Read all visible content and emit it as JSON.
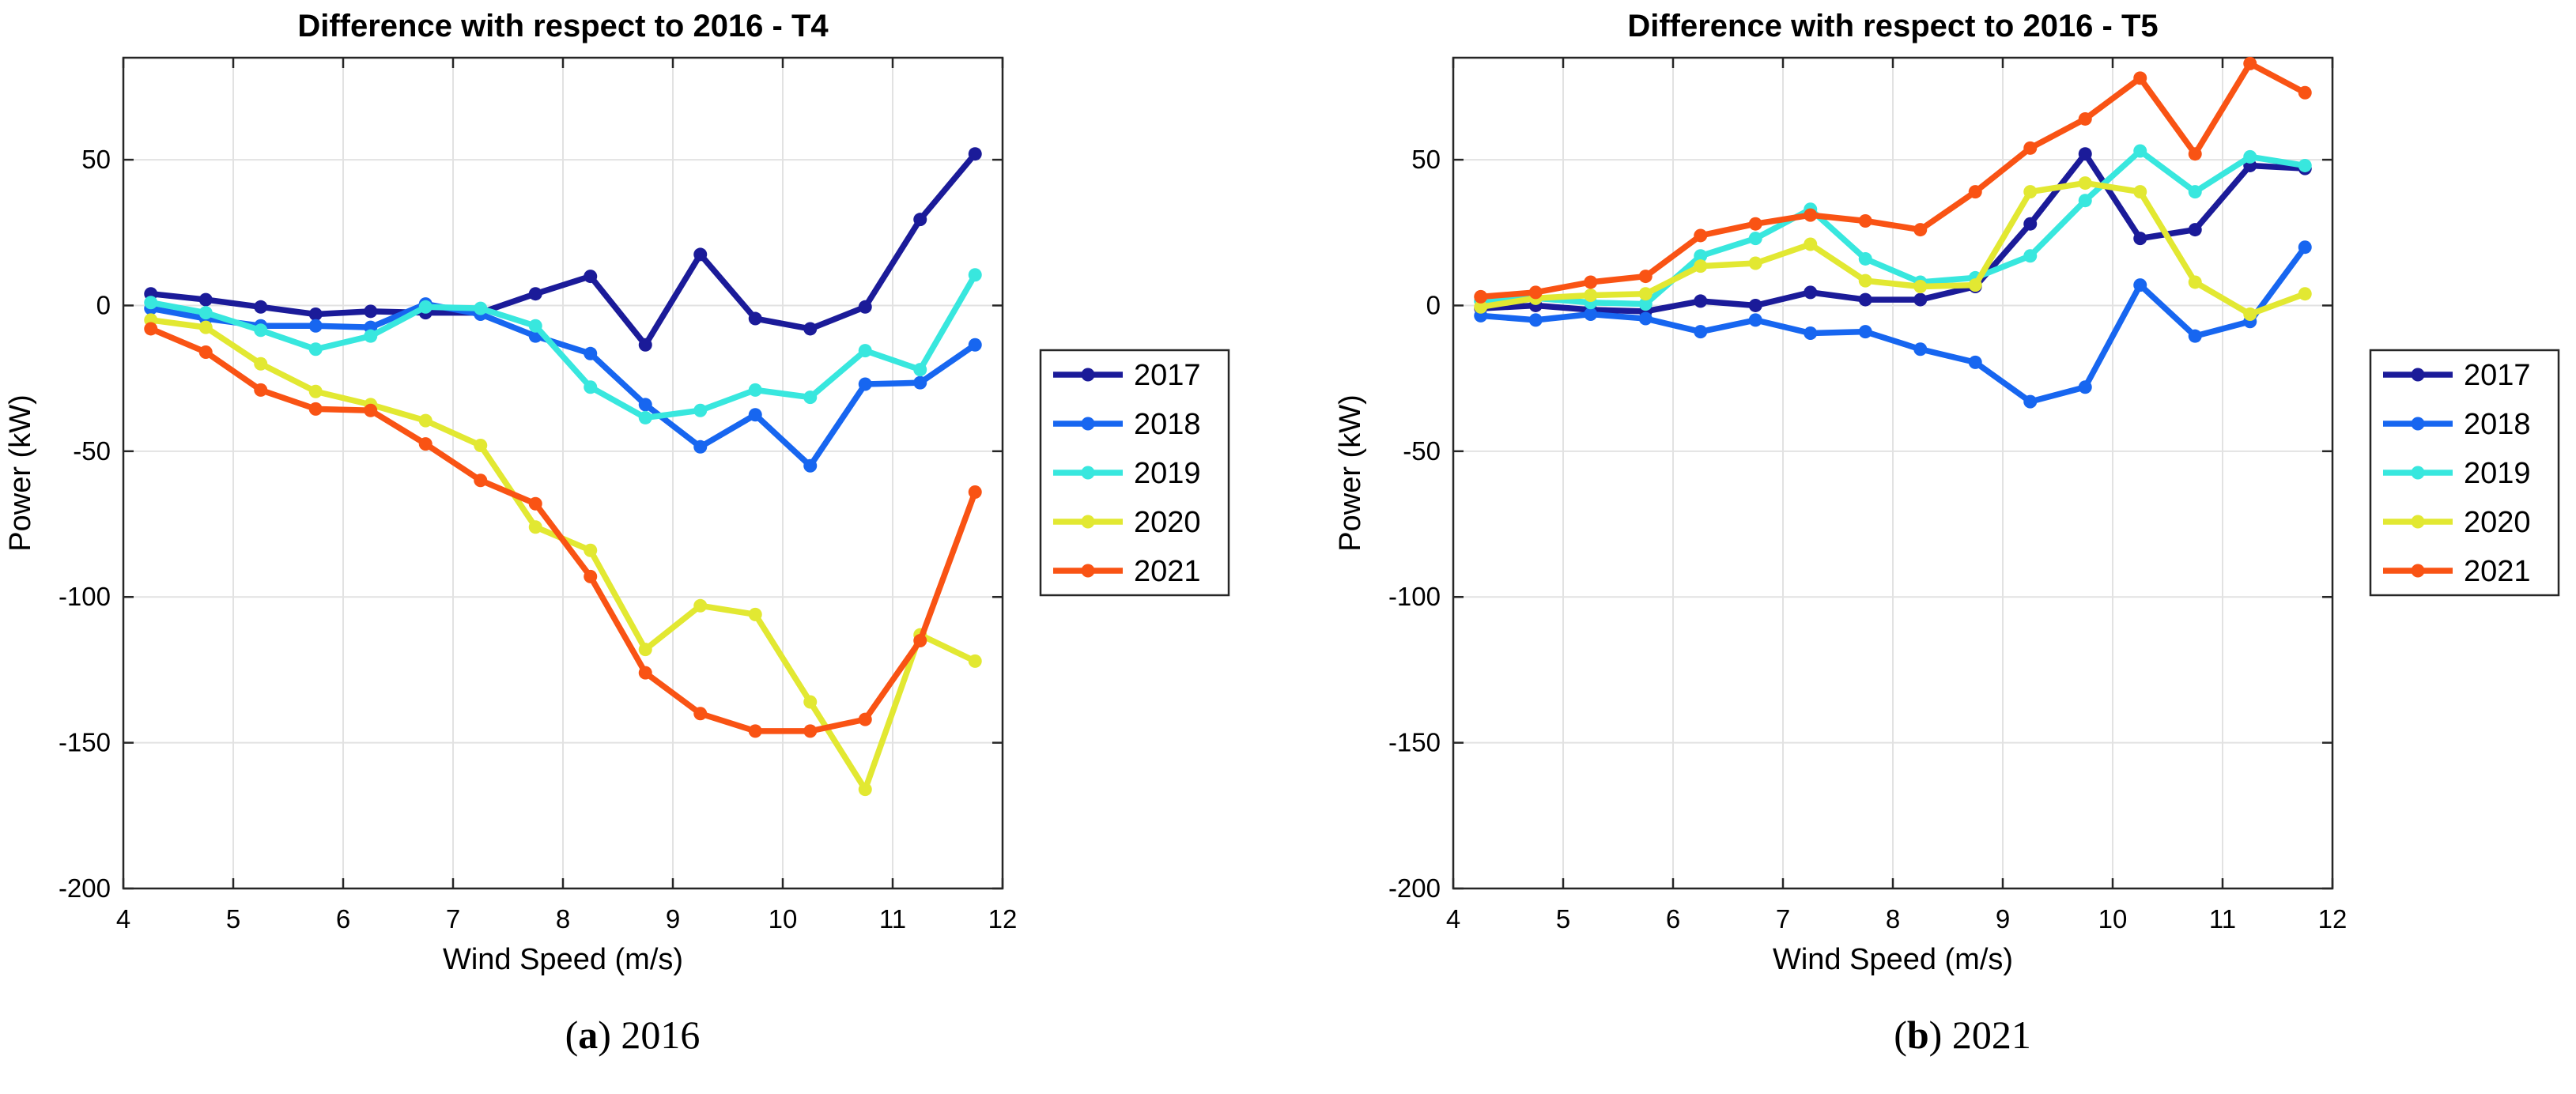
{
  "figure": {
    "background": "#ffffff",
    "captions": [
      {
        "letter": "a",
        "text": "2016"
      },
      {
        "letter": "b",
        "text": "2021"
      }
    ]
  },
  "chart_data": [
    {
      "type": "line",
      "title": "Difference with respect to 2016 - T4",
      "xlabel": "Wind Speed (m/s)",
      "ylabel": "Power (kW)",
      "xlim": [
        4,
        12
      ],
      "ylim": [
        -200,
        85
      ],
      "xticks": [
        4,
        5,
        6,
        7,
        8,
        9,
        10,
        11,
        12
      ],
      "yticks": [
        50,
        0,
        -50,
        -100,
        -150,
        -200
      ],
      "grid": true,
      "legend_position": "right-outside",
      "x": [
        4.25,
        4.75,
        5.25,
        5.75,
        6.25,
        6.75,
        7.25,
        7.75,
        8.25,
        8.75,
        9.25,
        9.75,
        10.25,
        10.75,
        11.25,
        11.75
      ],
      "series": [
        {
          "name": "2017",
          "color": "#1b1b99",
          "values": [
            4,
            2,
            -0.5,
            -3,
            -2,
            -2.5,
            -2.5,
            4,
            10,
            -13.5,
            17.5,
            -4.5,
            -8,
            -0.5,
            29.5,
            52
          ]
        },
        {
          "name": "2018",
          "color": "#1766f0",
          "values": [
            -1,
            -4.5,
            -7,
            -7,
            -7.5,
            0.5,
            -3,
            -10.5,
            -16.5,
            -34,
            -48.5,
            -37.5,
            -55,
            -27,
            -26.5,
            -13.5
          ]
        },
        {
          "name": "2019",
          "color": "#38e7de",
          "values": [
            1,
            -2.5,
            -8.5,
            -15,
            -10.5,
            -0.5,
            -1,
            -7,
            -28,
            -38.5,
            -36,
            -29,
            -31.5,
            -15.5,
            -22,
            10.5
          ]
        },
        {
          "name": "2020",
          "color": "#e2e832",
          "values": [
            -5,
            -7.5,
            -20,
            -29.5,
            -34,
            -39.5,
            -48,
            -76,
            -84,
            -118,
            -103,
            -106,
            -136,
            -166,
            -113,
            -122
          ]
        },
        {
          "name": "2021",
          "color": "#f95314",
          "values": [
            -8,
            -16,
            -29,
            -35.5,
            -36,
            -47.5,
            -60,
            -68,
            -93,
            -126,
            -140,
            -146,
            -146,
            -142,
            -115,
            -64
          ]
        }
      ]
    },
    {
      "type": "line",
      "title": "Difference with respect to 2016 - T5",
      "xlabel": "Wind Speed (m/s)",
      "ylabel": "Power (kW)",
      "xlim": [
        4,
        12
      ],
      "ylim": [
        -200,
        85
      ],
      "xticks": [
        4,
        5,
        6,
        7,
        8,
        9,
        10,
        11,
        12
      ],
      "yticks": [
        50,
        0,
        -50,
        -100,
        -150,
        -200
      ],
      "grid": true,
      "legend_position": "right-outside",
      "x": [
        4.25,
        4.75,
        5.25,
        5.75,
        6.25,
        6.75,
        7.25,
        7.75,
        8.25,
        8.75,
        9.25,
        9.75,
        10.25,
        10.75,
        11.25,
        11.75
      ],
      "series": [
        {
          "name": "2017",
          "color": "#1b1b99",
          "values": [
            -1,
            0,
            -1.5,
            -2,
            1.5,
            0,
            4.5,
            2,
            2,
            6.5,
            28,
            52,
            23,
            26,
            48,
            47
          ]
        },
        {
          "name": "2018",
          "color": "#1766f0",
          "values": [
            -3.5,
            -5,
            -3,
            -4.5,
            -9,
            -5,
            -9.5,
            -9,
            -15,
            -19.5,
            -33,
            -28,
            7,
            -10.5,
            -5.5,
            20
          ]
        },
        {
          "name": "2019",
          "color": "#38e7de",
          "values": [
            1.5,
            2.5,
            1,
            0.5,
            17,
            23,
            33,
            16,
            8,
            9.5,
            17,
            36,
            53,
            39,
            51,
            48
          ]
        },
        {
          "name": "2020",
          "color": "#e2e832",
          "values": [
            -0.5,
            2.5,
            3.5,
            4,
            13.5,
            14.5,
            21,
            8.5,
            6.5,
            7,
            39,
            42,
            39,
            8,
            -3,
            4
          ]
        },
        {
          "name": "2021",
          "color": "#f95314",
          "values": [
            3,
            4.5,
            8,
            10,
            24,
            28,
            31,
            29,
            26,
            39,
            54,
            64,
            78,
            52,
            83,
            73
          ]
        }
      ]
    }
  ]
}
